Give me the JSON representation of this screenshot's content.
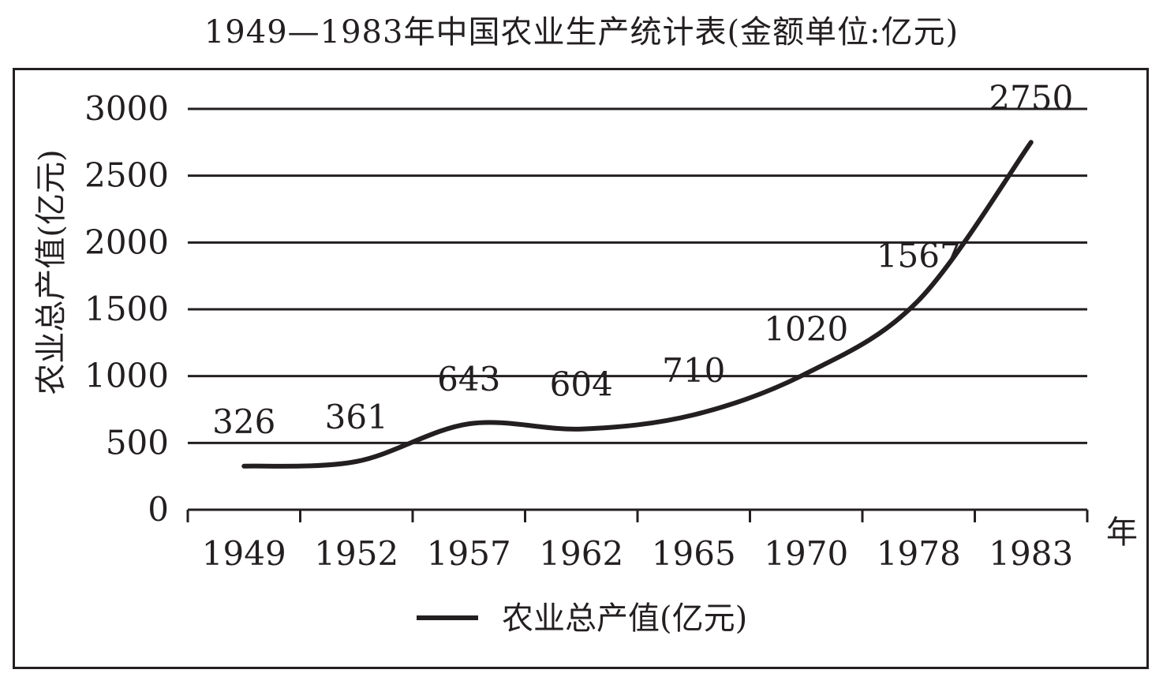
{
  "title": "1949—1983年中国农业生产统计表(金额单位:亿元)",
  "chart_data": {
    "type": "line",
    "categories": [
      "1949",
      "1952",
      "1957",
      "1962",
      "1965",
      "1970",
      "1978",
      "1983"
    ],
    "series": [
      {
        "name": "农业总产值(亿元)",
        "values": [
          326,
          361,
          643,
          604,
          710,
          1020,
          1567,
          2750
        ],
        "data_labels": [
          "326",
          "361",
          "643",
          "604",
          "710",
          "1020",
          "1567",
          "2750"
        ]
      }
    ],
    "ylabel": "农业总产值(亿元)",
    "xunit": "年",
    "ylim": [
      0,
      3000
    ],
    "yticks": [
      "0",
      "500",
      "1000",
      "1500",
      "2000",
      "2500",
      "3000"
    ],
    "grid": "horizontal",
    "legend_position": "bottom-center",
    "line_color": "#231f20"
  }
}
